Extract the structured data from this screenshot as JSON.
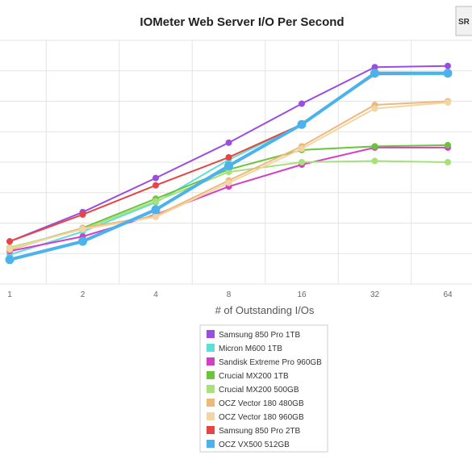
{
  "chart_data": {
    "type": "line",
    "title": "IOMeter Web Server I/O Per Second",
    "xlabel": "# of Outstanding I/Os",
    "ylabel": "",
    "x": [
      "1",
      "2",
      "4",
      "8",
      "16",
      "32",
      "64"
    ],
    "ylim": [
      0,
      1
    ],
    "grid": true,
    "legend_position": "bottom",
    "series": [
      {
        "name": "Samsung 850 Pro 1TB",
        "color": "#9b4de0",
        "values": [
          0.175,
          0.295,
          0.435,
          0.58,
          0.74,
          0.89,
          0.895
        ]
      },
      {
        "name": "Micron M600 1TB",
        "color": "#5ce0d8",
        "values": [
          0.12,
          0.215,
          0.335,
          0.51,
          0.655,
          0.86,
          0.86
        ]
      },
      {
        "name": "Sandisk Extreme Pro 960GB",
        "color": "#d43fc8",
        "values": [
          0.135,
          0.195,
          0.285,
          0.4,
          0.49,
          0.56,
          0.56
        ]
      },
      {
        "name": "Crucial MX200 1TB",
        "color": "#6cc43c",
        "values": [
          0.145,
          0.23,
          0.35,
          0.47,
          0.55,
          0.565,
          0.57
        ]
      },
      {
        "name": "Crucial MX200 500GB",
        "color": "#a8e07c",
        "values": [
          0.15,
          0.225,
          0.34,
          0.46,
          0.5,
          0.505,
          0.5
        ]
      },
      {
        "name": "OCZ Vector 180 480GB",
        "color": "#edb87a",
        "values": [
          0.14,
          0.23,
          0.28,
          0.425,
          0.565,
          0.735,
          0.75
        ]
      },
      {
        "name": "OCZ Vector 180 960GB",
        "color": "#f2d5a4",
        "values": [
          0.145,
          0.225,
          0.275,
          0.415,
          0.555,
          0.72,
          0.745
        ]
      },
      {
        "name": "Samsung 850 Pro 2TB",
        "color": "#e64545",
        "values": [
          0.175,
          0.285,
          0.405,
          0.52,
          0.655,
          0.86,
          0.865
        ]
      },
      {
        "name": "OCZ VX500 512GB",
        "color": "#4cb2ec",
        "values": [
          0.1,
          0.175,
          0.305,
          0.485,
          0.655,
          0.865,
          0.865
        ]
      }
    ]
  },
  "logo": {
    "text": "SR"
  }
}
